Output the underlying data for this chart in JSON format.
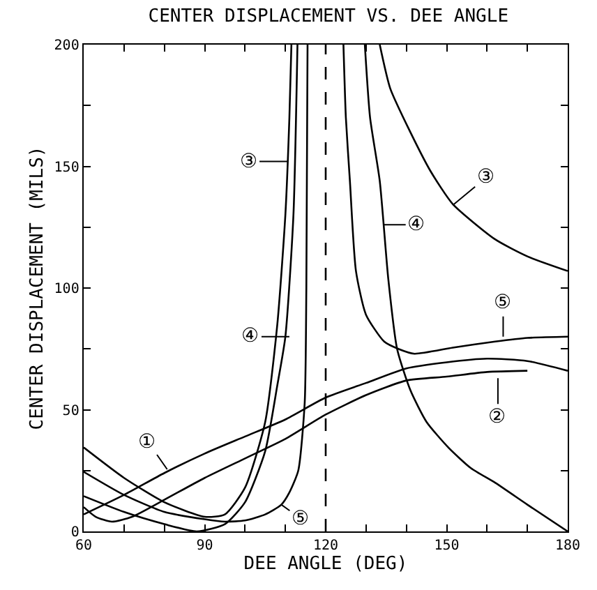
{
  "chart_data": {
    "type": "line",
    "title": "CENTER DISPLACEMENT VS. DEE ANGLE",
    "xlabel": "DEE ANGLE (DEG)",
    "ylabel": "CENTER DISPLACEMENT (MILS)",
    "xlim": [
      60,
      180
    ],
    "ylim": [
      0,
      200
    ],
    "xticks": [
      60,
      {
        "value": 70,
        "label": null
      },
      {
        "value": 80,
        "label": null
      },
      90,
      {
        "value": 100,
        "label": null
      },
      {
        "value": 110,
        "label": null
      },
      120,
      {
        "value": 130,
        "label": null
      },
      {
        "value": 140,
        "label": null
      },
      150,
      {
        "value": 160,
        "label": null
      },
      {
        "value": 170,
        "label": null
      },
      180
    ],
    "yticks": [
      0,
      {
        "value": 25,
        "label": null
      },
      50,
      {
        "value": 75,
        "label": null
      },
      100,
      {
        "value": 125,
        "label": null
      },
      150,
      {
        "value": 175,
        "label": null
      },
      200
    ],
    "legend": false,
    "marker": "none",
    "line_style": "solid",
    "series": [
      {
        "color": "#000000",
        "x": [
          60,
          70,
          80,
          90,
          100,
          110,
          120,
          130,
          140,
          150,
          160,
          170,
          180
        ],
        "values": [
          7,
          15,
          24,
          32,
          39,
          46,
          55,
          61,
          67,
          69.5,
          71,
          70,
          66
        ]
      },
      {
        "color": "#000000",
        "x": [
          60,
          63,
          67,
          72,
          80,
          90,
          100,
          110,
          120,
          130,
          140,
          150,
          160,
          170
        ],
        "values": [
          10,
          6,
          4,
          6,
          13,
          22,
          30,
          38,
          48,
          56,
          62,
          63.6,
          65.5,
          66
        ]
      },
      {
        "color": "#000000",
        "x": [
          60,
          70,
          80,
          90,
          95,
          100,
          105,
          108,
          110,
          111,
          111.5,
          120,
          133.4,
          136,
          141,
          146,
          151.5,
          162,
          170,
          180
        ],
        "values": [
          34.5,
          22,
          12,
          6,
          7,
          18,
          45,
          85,
          130,
          170,
          200,
          null,
          200,
          182,
          164,
          148,
          134.5,
          120,
          113,
          107
        ]
      },
      {
        "color": "#000000",
        "x": [
          60,
          70,
          80,
          88,
          95,
          100,
          105,
          108,
          110,
          112,
          113,
          120,
          129.7,
          131,
          133.4,
          135.5,
          137.7,
          141,
          145,
          150.4,
          156,
          162,
          170,
          180
        ],
        "values": [
          14.5,
          8,
          3,
          0,
          3,
          12,
          33,
          60,
          80,
          130,
          200,
          null,
          200,
          170,
          144,
          104,
          75,
          58,
          45,
          34.5,
          26,
          20,
          11,
          0
        ]
      },
      {
        "color": "#000000",
        "x": [
          60,
          70,
          80,
          90,
          95,
          100,
          105,
          109,
          111,
          113.2,
          114.8,
          115.2,
          115.5,
          120,
          124.4,
          125,
          126,
          127.5,
          130,
          134.5,
          138,
          142,
          151.5,
          162,
          170,
          180
        ],
        "values": [
          24.5,
          15,
          8,
          5,
          4,
          4.5,
          7,
          11,
          16,
          25,
          53,
          100,
          200,
          null,
          200,
          170,
          144,
          107,
          89,
          78,
          75,
          73,
          75.5,
          78,
          79.5,
          80
        ]
      }
    ],
    "ref_lines": [
      {
        "axis": "x",
        "value": 120,
        "label": null,
        "color": "#000000",
        "line_style": "dashed"
      }
    ],
    "annotations": [
      {
        "text": "①",
        "x": 80.7,
        "y": 25.5
      },
      {
        "text": "②",
        "x": 162.7,
        "y": 63
      },
      {
        "text": "③",
        "x": 110.5,
        "y": 152
      },
      {
        "text": "③",
        "x": 151.5,
        "y": 134
      },
      {
        "text": "④",
        "x": 111,
        "y": 80
      },
      {
        "text": "④",
        "x": 134.3,
        "y": 126
      },
      {
        "text": "⑤",
        "x": 109,
        "y": 11
      },
      {
        "text": "⑤",
        "x": 164,
        "y": 80
      }
    ]
  }
}
